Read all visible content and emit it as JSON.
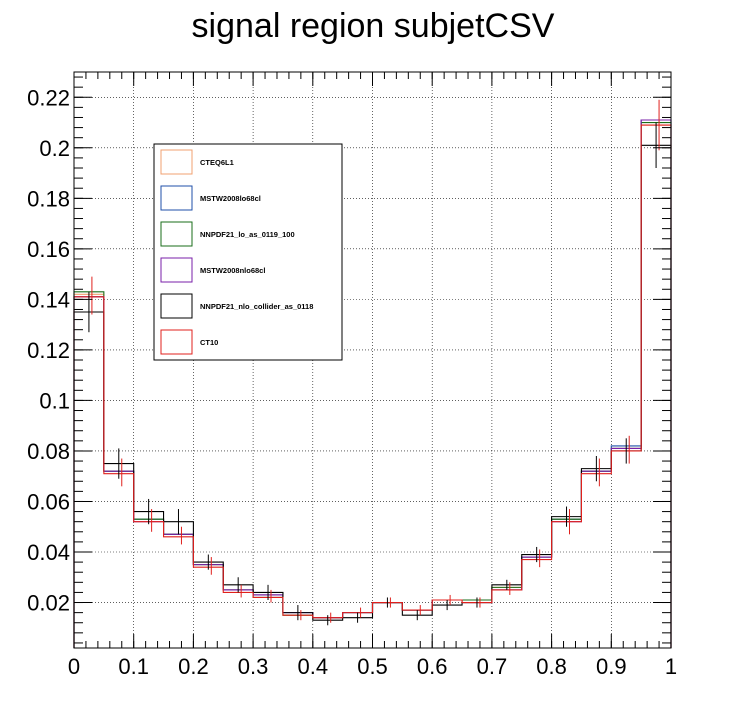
{
  "chart_data": {
    "type": "line",
    "title": "signal region subjetCSV",
    "xlabel": "",
    "ylabel": "",
    "xlim": [
      0,
      1
    ],
    "ylim": [
      0.002,
      0.23
    ],
    "x_ticks": [
      0,
      0.1,
      0.2,
      0.3,
      0.4,
      0.5,
      0.6,
      0.7,
      0.8,
      0.9,
      1
    ],
    "x_tick_labels": [
      "0",
      "0.1",
      "0.2",
      "0.3",
      "0.4",
      "0.5",
      "0.6",
      "0.7",
      "0.8",
      "0.9",
      "1"
    ],
    "y_ticks": [
      0.02,
      0.04,
      0.06,
      0.08,
      0.1,
      0.12,
      0.14,
      0.16,
      0.18,
      0.2,
      0.22
    ],
    "y_tick_labels": [
      "0.02",
      "0.04",
      "0.06",
      "0.08",
      "0.1",
      "0.12",
      "0.14",
      "0.16",
      "0.18",
      "0.2",
      "0.22"
    ],
    "grid": true,
    "legend_position": "upper-left",
    "bin_edges": [
      0,
      0.05,
      0.1,
      0.15,
      0.2,
      0.25,
      0.3,
      0.35,
      0.4,
      0.45,
      0.5,
      0.55,
      0.6,
      0.65,
      0.7,
      0.75,
      0.8,
      0.85,
      0.9,
      0.95,
      1
    ],
    "series": [
      {
        "name": "CTEQ6L1",
        "color": "#f0a070",
        "values": [
          0.142,
          0.072,
          0.053,
          0.047,
          0.035,
          0.025,
          0.023,
          0.015,
          0.014,
          0.016,
          0.02,
          0.017,
          0.021,
          0.021,
          0.026,
          0.038,
          0.053,
          0.072,
          0.081,
          0.209
        ]
      },
      {
        "name": "MSTW2008lo68cl",
        "color": "#1f4fa8",
        "values": [
          0.141,
          0.072,
          0.053,
          0.047,
          0.035,
          0.025,
          0.023,
          0.016,
          0.014,
          0.016,
          0.02,
          0.017,
          0.021,
          0.021,
          0.025,
          0.038,
          0.053,
          0.072,
          0.082,
          0.211
        ]
      },
      {
        "name": "NNPDF21_lo_as_0119_100",
        "color": "#1a6e1a",
        "values": [
          0.143,
          0.072,
          0.053,
          0.047,
          0.035,
          0.025,
          0.022,
          0.015,
          0.014,
          0.016,
          0.02,
          0.017,
          0.021,
          0.021,
          0.026,
          0.038,
          0.053,
          0.072,
          0.081,
          0.21
        ]
      },
      {
        "name": "MSTW2008nlo68cl",
        "color": "#7a1fa8",
        "values": [
          0.141,
          0.072,
          0.052,
          0.047,
          0.035,
          0.025,
          0.023,
          0.016,
          0.014,
          0.016,
          0.02,
          0.017,
          0.021,
          0.02,
          0.025,
          0.038,
          0.052,
          0.072,
          0.081,
          0.211
        ]
      },
      {
        "name": "NNPDF21_nlo_collider_as_0118",
        "color": "#000000",
        "values": [
          0.135,
          0.075,
          0.056,
          0.052,
          0.036,
          0.027,
          0.024,
          0.016,
          0.013,
          0.014,
          0.02,
          0.015,
          0.019,
          0.02,
          0.027,
          0.039,
          0.054,
          0.073,
          0.08,
          0.201
        ]
      },
      {
        "name": "CT10",
        "color": "#e0201c",
        "values": [
          0.141,
          0.071,
          0.052,
          0.046,
          0.034,
          0.024,
          0.022,
          0.015,
          0.014,
          0.016,
          0.02,
          0.017,
          0.021,
          0.02,
          0.025,
          0.037,
          0.052,
          0.071,
          0.08,
          0.209
        ]
      }
    ],
    "errors": [
      {
        "series": "NNPDF21_nlo_collider_as_0118",
        "x": [
          0.025,
          0.075,
          0.125,
          0.175,
          0.225,
          0.275,
          0.325,
          0.375,
          0.425,
          0.475,
          0.525,
          0.575,
          0.625,
          0.675,
          0.725,
          0.775,
          0.825,
          0.875,
          0.925,
          0.975
        ],
        "lo": [
          0.127,
          0.069,
          0.051,
          0.047,
          0.033,
          0.024,
          0.021,
          0.013,
          0.011,
          0.012,
          0.018,
          0.013,
          0.017,
          0.018,
          0.025,
          0.036,
          0.05,
          0.068,
          0.075,
          0.192
        ],
        "hi": [
          0.143,
          0.081,
          0.061,
          0.057,
          0.039,
          0.03,
          0.027,
          0.019,
          0.015,
          0.016,
          0.022,
          0.017,
          0.021,
          0.022,
          0.029,
          0.042,
          0.058,
          0.078,
          0.085,
          0.21
        ]
      },
      {
        "series": "CT10",
        "x": [
          0.03,
          0.08,
          0.13,
          0.18,
          0.23,
          0.28,
          0.33,
          0.38,
          0.43,
          0.48,
          0.53,
          0.58,
          0.63,
          0.68,
          0.73,
          0.78,
          0.83,
          0.88,
          0.93,
          0.98
        ],
        "lo": [
          0.134,
          0.066,
          0.048,
          0.043,
          0.031,
          0.022,
          0.02,
          0.013,
          0.012,
          0.014,
          0.018,
          0.015,
          0.019,
          0.018,
          0.023,
          0.034,
          0.047,
          0.066,
          0.075,
          0.199
        ],
        "hi": [
          0.149,
          0.077,
          0.057,
          0.05,
          0.038,
          0.027,
          0.025,
          0.017,
          0.016,
          0.018,
          0.022,
          0.019,
          0.023,
          0.022,
          0.028,
          0.041,
          0.057,
          0.077,
          0.086,
          0.219
        ]
      }
    ]
  }
}
